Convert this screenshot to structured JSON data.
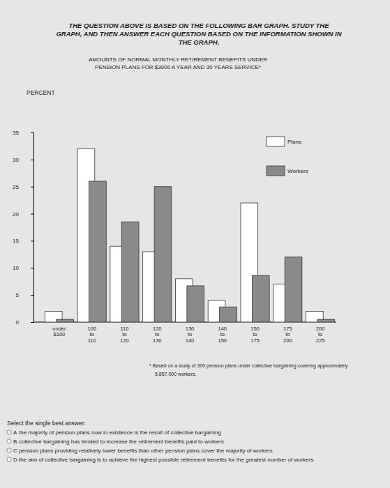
{
  "header": [
    "THE QUESTION ABOVE IS BASED ON THE FOLLOWING BAR GRAPH. STUDY THE",
    "GRAPH, AND THEN ANSWER EACH QUESTION BASED ON THE INFORMATION SHOWN IN",
    "THE GRAPH."
  ],
  "chart_data": {
    "type": "bar",
    "title": [
      "AMOUNTS OF NORMAL MONTHLY RETIREMENT BENEFITS UNDER",
      "PENSION PLANS FOR $3000 A YEAR AND 30 YEARS SERVICE*"
    ],
    "ylabel": "PERCENT",
    "categories": [
      "under $100",
      "100 to 110",
      "110 to 120",
      "120 to 130",
      "130 to 140",
      "140 to 150",
      "150 to 175",
      "175 to 200",
      "200 to 225"
    ],
    "series": [
      {
        "name": "Plans",
        "color": "#ffffff",
        "values": [
          2,
          32,
          14,
          13,
          8,
          4,
          22,
          7,
          2
        ]
      },
      {
        "name": "Workers",
        "color": "#8a8a8a",
        "values": [
          0.5,
          26,
          18.5,
          25,
          6.7,
          2.8,
          8.6,
          12,
          0.5
        ]
      }
    ],
    "ylim": [
      0,
      35
    ],
    "yticks": [
      0,
      5,
      10,
      15,
      20,
      25,
      30,
      35
    ],
    "grid": false,
    "legend": "upper right",
    "annotations": [
      "* Based on a study of 300 pension plans under collective bargaining covering approximately",
      "5,857,000 workers."
    ]
  },
  "question": {
    "prompt": "Select the single best answer:",
    "options": [
      {
        "letter": "A",
        "text": "the majority of pension plans now in existence is the result of collective bargaining"
      },
      {
        "letter": "B",
        "text": "collective bargaining has tended to increase the retirement benefits paid to workers"
      },
      {
        "letter": "C",
        "text": "pension plans providing relatively lower benefits than other pension plans cover the majority of workers"
      },
      {
        "letter": "D",
        "text": "the aim of collective bargaining is to achieve the highest possible retirement benefits for the greatest number of workers"
      }
    ]
  }
}
